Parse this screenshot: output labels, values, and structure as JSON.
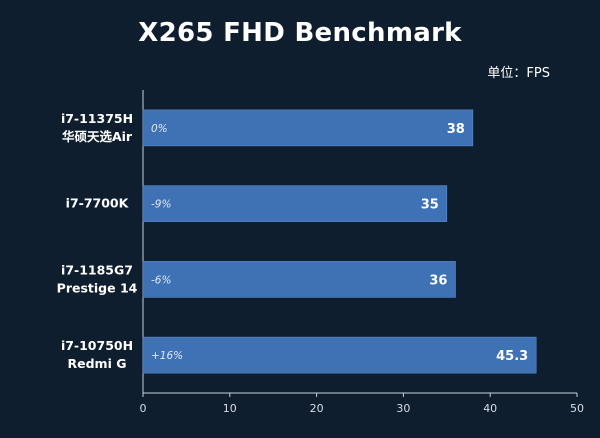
{
  "chart_data": {
    "type": "bar",
    "orientation": "horizontal",
    "title": "X265 FHD Benchmark",
    "unit_label": "单位：FPS",
    "categories": [
      [
        "i7-11375H",
        "华硕天选Air"
      ],
      [
        "i7-7700K"
      ],
      [
        "i7-1185G7",
        "Prestige 14"
      ],
      [
        "i7-10750H",
        "Redmi G"
      ]
    ],
    "values": [
      38,
      35,
      36,
      45.3
    ],
    "value_labels": [
      "38",
      "35",
      "36",
      "45.3"
    ],
    "annotations": [
      "0%",
      "-9%",
      "-6%",
      "+16%"
    ],
    "xlim": [
      0,
      50
    ],
    "xticks": [
      0,
      10,
      20,
      30,
      40,
      50
    ],
    "bar_color": "#3f72b4",
    "background_color": "#0f1e2f",
    "grid": false
  }
}
